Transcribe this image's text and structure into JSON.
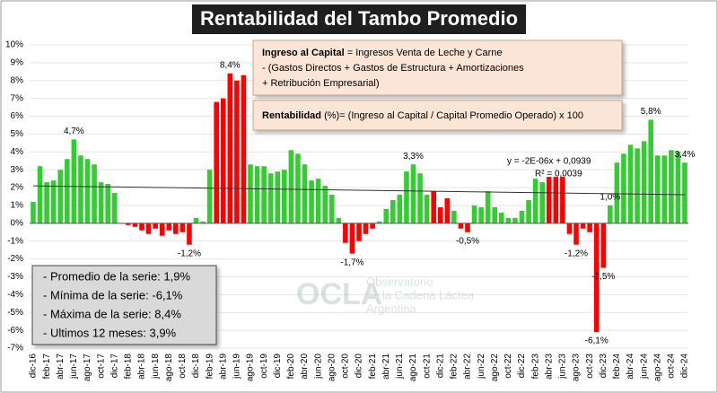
{
  "chart_data": {
    "type": "bar",
    "title": "Rentabilidad del Tambo Promedio",
    "categories": [
      "dic-16",
      null,
      "feb-17",
      null,
      "abr-17",
      null,
      "jun-17",
      null,
      "ago-17",
      null,
      "oct-17",
      null,
      "dic-17",
      null,
      "feb-18",
      null,
      "abr-18",
      null,
      "jun-18",
      null,
      "ago-18",
      null,
      "oct-18",
      null,
      "dic-18",
      null,
      "feb-19",
      null,
      "abr-19",
      null,
      "jun-19",
      null,
      "ago-19",
      null,
      "oct-19",
      null,
      "dic-19",
      null,
      "feb-20",
      null,
      "abr-20",
      null,
      "jun-20",
      null,
      "ago-20",
      null,
      "oct-20",
      null,
      "dic-20",
      null,
      "feb-21",
      null,
      "abr-21",
      null,
      "jun-21",
      null,
      "ago-21",
      null,
      "oct-21",
      null,
      "dic-21",
      null,
      "feb-22",
      null,
      "abr-22",
      null,
      "jun-22",
      null,
      "ago-22",
      null,
      "oct-22",
      null,
      "dic-22",
      null,
      "feb-23",
      null,
      "abr-23",
      null,
      "jun-23",
      null,
      "ago-23",
      null,
      "oct-23",
      null,
      "dic-23",
      null,
      "feb-24",
      null,
      "abr-24",
      null,
      "jun-24",
      null,
      "ago-24",
      null,
      "oct-24",
      null,
      "dic-24"
    ],
    "values": [
      1.2,
      3.2,
      2.3,
      2.4,
      3.0,
      3.6,
      4.7,
      3.8,
      3.6,
      3.3,
      2.3,
      2.2,
      1.7,
      0,
      -0.1,
      -0.2,
      -0.4,
      -0.6,
      -0.3,
      -0.7,
      -0.4,
      -0.6,
      -0.5,
      -1.2,
      0.3,
      0.1,
      3.0,
      6.8,
      7.0,
      8.4,
      8.0,
      8.3,
      3.3,
      3.2,
      3.2,
      2.8,
      2.9,
      3.0,
      4.1,
      3.9,
      3.3,
      2.4,
      2.5,
      2.1,
      1.6,
      0.3,
      -1.1,
      -1.7,
      -1.0,
      -0.6,
      -0.3,
      0.1,
      0.8,
      1.3,
      1.6,
      2.9,
      3.3,
      2.8,
      1.6,
      1.8,
      0.9,
      1.4,
      0.7,
      -0.3,
      -0.5,
      1.0,
      0.9,
      1.8,
      0.9,
      0.6,
      0.3,
      0.3,
      0.7,
      1.3,
      2.5,
      2.3,
      2.6,
      2.6,
      2.6,
      -0.6,
      -1.2,
      -0.3,
      -0.5,
      -6.1,
      -2.5,
      1.0,
      3.4,
      3.9,
      4.4,
      4.2,
      4.6,
      5.8,
      3.8,
      3.8,
      4.1,
      4.0,
      3.4
    ],
    "value_labels": [
      null,
      null,
      null,
      null,
      null,
      null,
      "4,7%",
      null,
      null,
      null,
      null,
      null,
      null,
      null,
      null,
      null,
      null,
      null,
      null,
      null,
      null,
      null,
      null,
      "-1,2%",
      null,
      null,
      null,
      null,
      null,
      "8,4%",
      null,
      null,
      null,
      null,
      null,
      null,
      null,
      null,
      null,
      null,
      null,
      null,
      null,
      null,
      null,
      null,
      null,
      "-1,7%",
      null,
      null,
      null,
      null,
      null,
      null,
      null,
      null,
      "3,3%",
      null,
      null,
      null,
      null,
      null,
      null,
      null,
      "-0,5%",
      null,
      null,
      null,
      null,
      null,
      null,
      null,
      null,
      null,
      null,
      null,
      null,
      null,
      null,
      null,
      "-1,2%",
      null,
      null,
      "-6,1%",
      "-2,5%",
      "1,0%",
      null,
      null,
      null,
      null,
      null,
      "5,8%",
      null,
      null,
      null,
      null,
      "3,4%"
    ],
    "colors": [
      "#33cc33",
      "#33cc33",
      "#33cc33",
      "#33cc33",
      "#33cc33",
      "#33cc33",
      "#33cc33",
      "#33cc33",
      "#33cc33",
      "#33cc33",
      "#33cc33",
      "#33cc33",
      "#33cc33",
      "#33cc33",
      "#ff0000",
      "#ff0000",
      "#ff0000",
      "#ff0000",
      "#ff0000",
      "#ff0000",
      "#ff0000",
      "#ff0000",
      "#ff0000",
      "#ff0000",
      "#33cc33",
      "#33cc33",
      "#33cc33",
      "#ff0000",
      "#ff0000",
      "#ff0000",
      "#ff0000",
      "#ff0000",
      "#33cc33",
      "#33cc33",
      "#33cc33",
      "#33cc33",
      "#33cc33",
      "#33cc33",
      "#33cc33",
      "#33cc33",
      "#33cc33",
      "#33cc33",
      "#33cc33",
      "#33cc33",
      "#33cc33",
      "#33cc33",
      "#ff0000",
      "#ff0000",
      "#ff0000",
      "#ff0000",
      "#ff0000",
      "#33cc33",
      "#33cc33",
      "#33cc33",
      "#33cc33",
      "#33cc33",
      "#33cc33",
      "#33cc33",
      "#33cc33",
      "#ff0000",
      "#ff0000",
      "#ff0000",
      "#33cc33",
      "#ff0000",
      "#ff0000",
      "#33cc33",
      "#33cc33",
      "#33cc33",
      "#33cc33",
      "#33cc33",
      "#33cc33",
      "#33cc33",
      "#33cc33",
      "#33cc33",
      "#33cc33",
      "#33cc33",
      "#ff0000",
      "#ff0000",
      "#ff0000",
      "#ff0000",
      "#ff0000",
      "#ff0000",
      "#ff0000",
      "#ff0000",
      "#ff0000",
      "#33cc33",
      "#33cc33",
      "#33cc33",
      "#33cc33",
      "#33cc33",
      "#33cc33",
      "#33cc33",
      "#33cc33",
      "#33cc33",
      "#33cc33",
      "#33cc33",
      "#33cc33"
    ],
    "ylim": [
      -7,
      10
    ],
    "yticks": [
      {
        "value": 10,
        "label": "10%"
      },
      {
        "value": 9,
        "label": "9%"
      },
      {
        "value": 8,
        "label": "8%"
      },
      {
        "value": 7,
        "label": "7%"
      },
      {
        "value": 6,
        "label": "6%"
      },
      {
        "value": 5,
        "label": "5%"
      },
      {
        "value": 4,
        "label": "4%"
      },
      {
        "value": 3,
        "label": "3%"
      },
      {
        "value": 2,
        "label": "2%"
      },
      {
        "value": 1,
        "label": "1%"
      },
      {
        "value": 0,
        "label": "0%"
      },
      {
        "value": -1,
        "label": "-1%"
      },
      {
        "value": -2,
        "label": "-2%"
      },
      {
        "value": -3,
        "label": "-3%"
      },
      {
        "value": -4,
        "label": "-4%"
      },
      {
        "value": -5,
        "label": "-5%"
      },
      {
        "value": -6,
        "label": "-6%"
      },
      {
        "value": -7,
        "label": "-7%"
      }
    ],
    "grid": true,
    "trendline": {
      "values": [
        2.1,
        1.6
      ],
      "equation": "y = -2E-06x + 0,0939",
      "r2": "R² = 0,0039"
    },
    "formula_box": {
      "line1_bold": "Ingreso al Capital",
      "line1_rest": " = Ingresos Venta de Leche y Carne",
      "line2": "-  (Gastos Directos + Gastos de Estructura  + Amortizaciones",
      "line3": "+  Retribución Empresarial)"
    },
    "rent_box": {
      "bold": "Rentabilidad",
      "rest": " (%)= (Ingreso al Capital / Capital Promedio Operado) x 100"
    },
    "stats": [
      "- Promedio de la serie: 1,9%",
      "- Mínima de la serie: -6,1%",
      "- Máxima de la serie: 8,4%",
      "- Ultimos 12 meses: 3,9%"
    ],
    "watermark": {
      "logo": "OCLA",
      "line1": "Observatorio",
      "line2": "de la Cadena Láctea",
      "line3": "Argentina"
    }
  }
}
